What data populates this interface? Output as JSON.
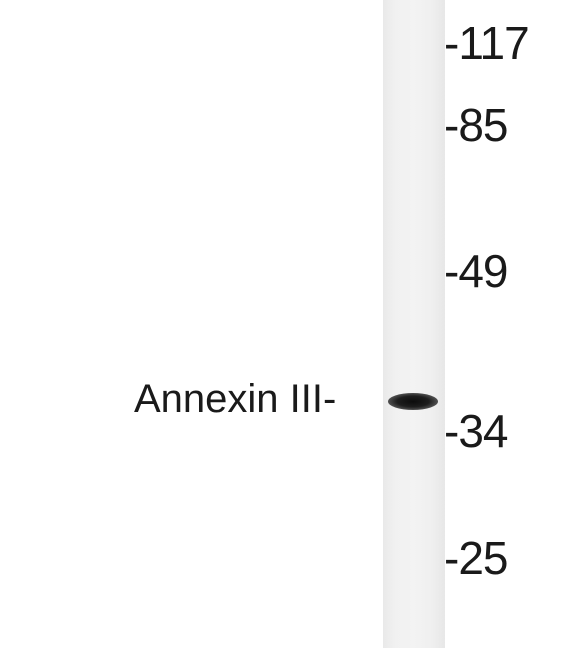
{
  "blot": {
    "band_label": "Annexin III-",
    "markers": [
      "-117",
      "-85",
      "-49",
      "-34",
      "-25"
    ]
  }
}
